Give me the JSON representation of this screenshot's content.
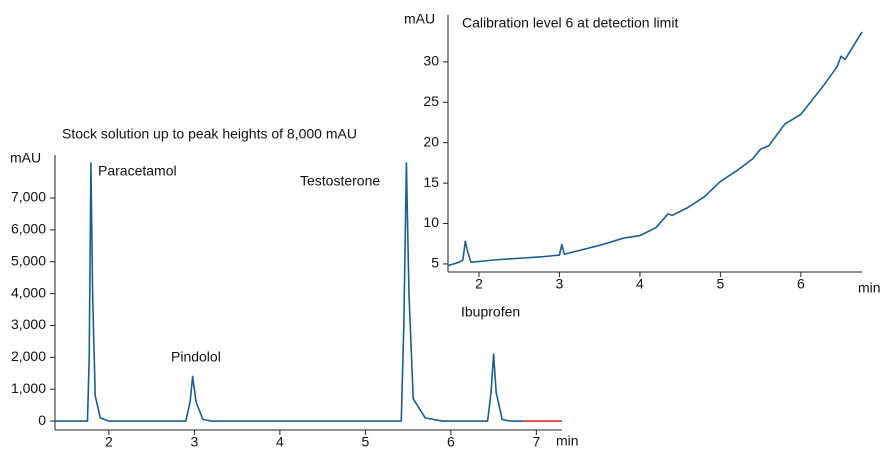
{
  "chart_data": [
    {
      "type": "line",
      "title": "Stock solution up to peak heights of 8,000 mAU",
      "y_label": "mAU",
      "x_label": "min",
      "xlim": [
        1.37,
        7.3
      ],
      "ylim": [
        -280,
        8350
      ],
      "xticks": [
        2,
        3,
        4,
        5,
        6,
        7
      ],
      "yticks": [
        0,
        {
          "value": 1000,
          "label": "1,000"
        },
        {
          "value": 2000,
          "label": "2,000"
        },
        {
          "value": 3000,
          "label": "3,000"
        },
        {
          "value": 4000,
          "label": "4,000"
        },
        {
          "value": 5000,
          "label": "5,000"
        },
        {
          "value": 6000,
          "label": "6,000"
        },
        {
          "value": 7000,
          "label": "7,000"
        }
      ],
      "annotations": [
        "Paracetamol",
        "Pindolol",
        "Testosterone",
        "Ibuprofen"
      ],
      "series": [
        {
          "color": "#1b5f8f",
          "x": [
            1.37,
            1.75,
            1.77,
            1.79,
            1.81,
            1.84,
            1.9,
            2.0,
            2.9,
            2.95,
            2.98,
            3.02,
            3.1,
            3.2,
            5.42,
            5.45,
            5.48,
            5.51,
            5.56,
            5.7,
            5.9,
            6.43,
            6.47,
            6.5,
            6.53,
            6.6,
            6.7,
            6.85
          ],
          "values": [
            0,
            0,
            2000,
            8100,
            4000,
            800,
            100,
            0,
            0,
            600,
            1400,
            600,
            50,
            0,
            0,
            3000,
            8100,
            4000,
            700,
            100,
            0,
            0,
            900,
            2100,
            900,
            50,
            0,
            0
          ]
        },
        {
          "color": "#e03030",
          "x": [
            6.85,
            7.3
          ],
          "values": [
            0,
            0
          ]
        }
      ]
    },
    {
      "type": "line",
      "title": "Calibration level 6 at detection limit",
      "y_label": "mAU",
      "x_label": "min",
      "xlim": [
        1.615,
        6.76
      ],
      "ylim": [
        4.0,
        35.8
      ],
      "xticks": [
        2,
        3,
        4,
        5,
        6
      ],
      "yticks": [
        5,
        10,
        15,
        20,
        25,
        30
      ],
      "series": [
        {
          "color": "#1b5f8f",
          "x": [
            1.62,
            1.75,
            1.8,
            1.83,
            1.86,
            1.9,
            2.0,
            2.2,
            2.5,
            2.8,
            3.0,
            3.03,
            3.06,
            3.3,
            3.5,
            3.8,
            4.0,
            4.2,
            4.35,
            4.4,
            4.6,
            4.8,
            5.0,
            5.2,
            5.4,
            5.5,
            5.6,
            5.8,
            6.0,
            6.3,
            6.45,
            6.5,
            6.55,
            6.76
          ],
          "values": [
            4.8,
            5.2,
            5.5,
            7.8,
            6.5,
            5.2,
            5.3,
            5.5,
            5.7,
            5.9,
            6.1,
            7.4,
            6.2,
            6.8,
            7.3,
            8.2,
            8.5,
            9.5,
            11.2,
            11.0,
            12.0,
            13.3,
            15.2,
            16.5,
            18.0,
            19.2,
            19.6,
            22.3,
            23.5,
            27.3,
            29.4,
            30.7,
            30.3,
            33.7
          ]
        }
      ]
    }
  ]
}
